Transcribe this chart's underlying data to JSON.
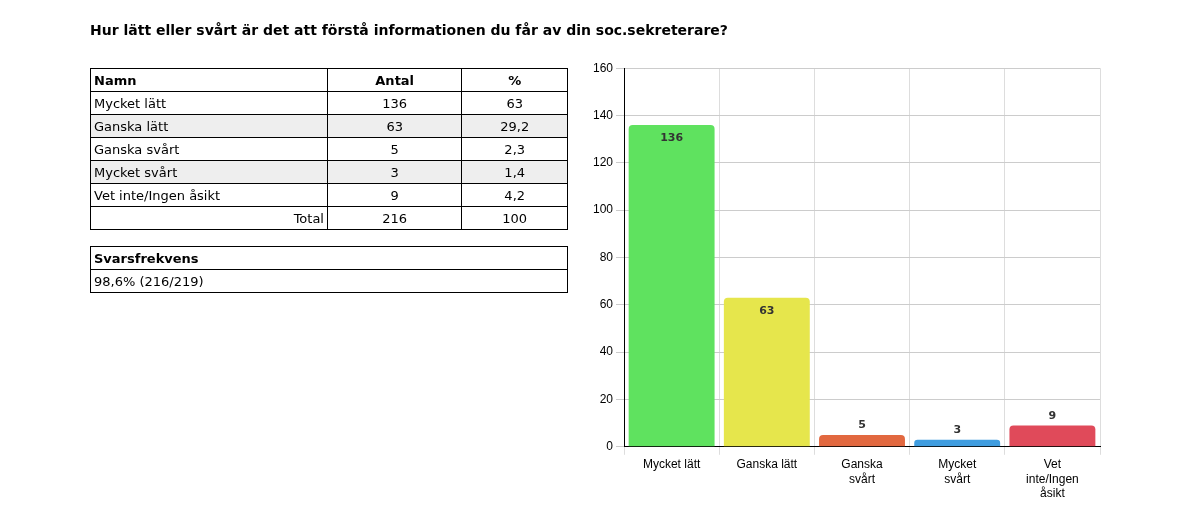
{
  "chart_data": [
    {
      "type": "other",
      "title": "Hur lätt eller svårt är det att förstå informationen du får av din soc.sekreterare?",
      "xlabel": "Namn",
      "categories": [
        "Mycket lätt",
        "Ganska lätt",
        "Ganska svårt",
        "Mycket svårt",
        "Vet inte/Ingen åsikt",
        "Total"
      ],
      "series": [
        {
          "name": "Antal",
          "values": [
            136,
            63,
            5,
            3,
            9,
            216
          ]
        },
        {
          "name": "%",
          "values": [
            63,
            29.2,
            2.3,
            1.4,
            4.2,
            100
          ],
          "value_labels": [
            "63",
            "29,2",
            "2,3",
            "1,4",
            "4,2",
            "100"
          ]
        }
      ],
      "data_labels": true,
      "annotations": [
        "Svarsfrekvens",
        "98,6% (216/219)"
      ]
    },
    {
      "type": "bar",
      "categories": [
        "Mycket lätt",
        "Ganska lätt",
        "Ganska svårt",
        "Mycket svårt",
        "Vet inte/Ingen åsikt"
      ],
      "values": [
        136,
        63,
        5,
        3,
        9
      ],
      "colors": [
        "#5fe25f",
        "#e6e64c",
        "#e2683f",
        "#3f9de0",
        "#e04a5a"
      ],
      "ylim": [
        0,
        160
      ],
      "yticks": [
        0,
        20,
        40,
        60,
        80,
        100,
        120,
        140,
        160
      ],
      "grid": true,
      "data_labels": true
    }
  ]
}
